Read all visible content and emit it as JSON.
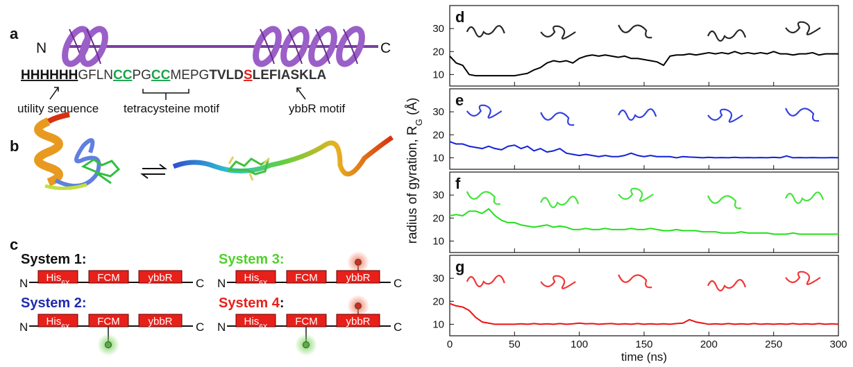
{
  "panel_a": {
    "label": "a",
    "n_term": "N",
    "c_term": "C",
    "sequence": [
      {
        "text": "HHHHHH",
        "bold": true,
        "underline": true,
        "color": "#111111"
      },
      {
        "text": "GFLN",
        "color": "#333333"
      },
      {
        "text": "CC",
        "bold": true,
        "underline": true,
        "color": "#1aa34a"
      },
      {
        "text": "PG",
        "color": "#333333"
      },
      {
        "text": "CC",
        "bold": true,
        "underline": true,
        "color": "#1aa34a"
      },
      {
        "text": "MEPG",
        "color": "#333333"
      },
      {
        "text": "TVLD",
        "bold": true,
        "color": "#333333"
      },
      {
        "text": "S",
        "bold": true,
        "underline": true,
        "color": "#e0201b"
      },
      {
        "text": "LEFIASKLA",
        "bold": true,
        "color": "#333333"
      }
    ],
    "annotations": [
      "utility sequence",
      "tetracysteine motif",
      "ybbR motif"
    ]
  },
  "panel_b": {
    "label": "b"
  },
  "panel_c": {
    "label": "c",
    "n_term": "N",
    "c_term": "C",
    "boxes": [
      "His",
      "FCM",
      "ybbR"
    ],
    "his_subscript": "6X",
    "box_color": "#e8201a",
    "systems": [
      {
        "name": "System 1:",
        "color": "#111111"
      },
      {
        "name": "System 2:",
        "color": "#1f2bb0"
      },
      {
        "name": "System 3:",
        "color": "#4fd12a"
      },
      {
        "name": "System 4",
        "suffix": ":",
        "color": "#e8201a"
      }
    ]
  },
  "figure": {
    "ylabel": "radius of gyration, R",
    "ylabel_sub": "G",
    "ylabel_end": " (Å)"
  },
  "chart_data": [
    {
      "type": "line",
      "label": "d",
      "color": "#000000",
      "xlim": [
        0,
        300
      ],
      "xticks": [
        0,
        50,
        100,
        150,
        200,
        250,
        300
      ],
      "ylim": [
        5,
        40
      ],
      "yticks": [
        10,
        20,
        30
      ],
      "x": [
        0,
        5,
        10,
        15,
        20,
        25,
        30,
        35,
        40,
        45,
        50,
        55,
        60,
        65,
        70,
        75,
        80,
        85,
        90,
        95,
        100,
        105,
        110,
        115,
        120,
        125,
        130,
        135,
        140,
        145,
        150,
        155,
        160,
        165,
        170,
        175,
        180,
        185,
        190,
        195,
        200,
        205,
        210,
        215,
        220,
        225,
        230,
        235,
        240,
        245,
        250,
        255,
        260,
        265,
        270,
        275,
        280,
        285,
        290,
        295,
        300
      ],
      "values": [
        18,
        15,
        14,
        10,
        9.5,
        9.5,
        9.5,
        9.5,
        9.5,
        9.5,
        9.5,
        10,
        10.5,
        12,
        13,
        15,
        16,
        15.5,
        16,
        15,
        17,
        18,
        18.5,
        18,
        18.5,
        18,
        17.5,
        18,
        17,
        17,
        16.5,
        16,
        15.5,
        14,
        18,
        18.5,
        18.5,
        19,
        18.5,
        19,
        19.5,
        19,
        19.5,
        19,
        20,
        19,
        19.5,
        19,
        19.5,
        19,
        20,
        19,
        19,
        18.5,
        19,
        19,
        19.5,
        18.5,
        19,
        19,
        19
      ]
    },
    {
      "type": "line",
      "label": "e",
      "color": "#1020d8",
      "xlim": [
        0,
        300
      ],
      "xticks": [
        0,
        50,
        100,
        150,
        200,
        250,
        300
      ],
      "ylim": [
        5,
        40
      ],
      "yticks": [
        10,
        20,
        30
      ],
      "x": [
        0,
        5,
        10,
        15,
        20,
        25,
        30,
        35,
        40,
        45,
        50,
        55,
        60,
        65,
        70,
        75,
        80,
        85,
        90,
        95,
        100,
        105,
        110,
        115,
        120,
        125,
        130,
        135,
        140,
        145,
        150,
        155,
        160,
        165,
        170,
        175,
        180,
        185,
        190,
        195,
        200,
        205,
        210,
        215,
        220,
        225,
        230,
        235,
        240,
        245,
        250,
        255,
        260,
        265,
        270,
        275,
        280,
        285,
        290,
        295,
        300
      ],
      "values": [
        17,
        16,
        16,
        15,
        14.5,
        14,
        15,
        14,
        13.5,
        15,
        15.5,
        14,
        15,
        13,
        14,
        12.5,
        13,
        14,
        12,
        11.5,
        11,
        11.5,
        11,
        10.5,
        11,
        10.5,
        10.5,
        11,
        12,
        11,
        10.5,
        11,
        10.5,
        10.5,
        10.5,
        10,
        10.5,
        10.3,
        10.2,
        10,
        10.2,
        10,
        10.1,
        10,
        10.2,
        10,
        10.1,
        10,
        10.1,
        10,
        10.2,
        10,
        10.8,
        10,
        10.1,
        10,
        10.1,
        10,
        10,
        10.1,
        10
      ]
    },
    {
      "type": "line",
      "label": "f",
      "color": "#22e01a",
      "xlim": [
        0,
        300
      ],
      "xticks": [
        0,
        50,
        100,
        150,
        200,
        250,
        300
      ],
      "ylim": [
        5,
        40
      ],
      "yticks": [
        10,
        20,
        30
      ],
      "x": [
        0,
        5,
        10,
        15,
        20,
        25,
        30,
        35,
        40,
        45,
        50,
        55,
        60,
        65,
        70,
        75,
        80,
        85,
        90,
        95,
        100,
        105,
        110,
        115,
        120,
        125,
        130,
        135,
        140,
        145,
        150,
        155,
        160,
        165,
        170,
        175,
        180,
        185,
        190,
        195,
        200,
        205,
        210,
        215,
        220,
        225,
        230,
        235,
        240,
        245,
        250,
        255,
        260,
        265,
        270,
        275,
        280,
        285,
        290,
        295,
        300
      ],
      "values": [
        21,
        21.5,
        21,
        23,
        23,
        22,
        24,
        21,
        19,
        18,
        18,
        17,
        16.5,
        16,
        16.5,
        17,
        16,
        16.5,
        16,
        15,
        15,
        15.5,
        15,
        15,
        15.5,
        15,
        15,
        15,
        15.5,
        15,
        15,
        15.5,
        15,
        14.5,
        14.5,
        15,
        14.5,
        14.5,
        14.5,
        14,
        14,
        14,
        13.5,
        13.5,
        13.5,
        14,
        13.5,
        13.5,
        13.5,
        13.5,
        13,
        13,
        13,
        13.5,
        13,
        13,
        13,
        13,
        13,
        13,
        13
      ]
    },
    {
      "type": "line",
      "label": "g",
      "color": "#ee1010",
      "xlim": [
        0,
        300
      ],
      "xticks": [
        0,
        50,
        100,
        150,
        200,
        250,
        300
      ],
      "ylim": [
        5,
        40
      ],
      "yticks": [
        10,
        20,
        30
      ],
      "xlabel": "time (ns)",
      "x": [
        0,
        5,
        10,
        15,
        20,
        25,
        30,
        35,
        40,
        45,
        50,
        55,
        60,
        65,
        70,
        75,
        80,
        85,
        90,
        95,
        100,
        105,
        110,
        115,
        120,
        125,
        130,
        135,
        140,
        145,
        150,
        155,
        160,
        165,
        170,
        175,
        180,
        185,
        190,
        195,
        200,
        205,
        210,
        215,
        220,
        225,
        230,
        235,
        240,
        245,
        250,
        255,
        260,
        265,
        270,
        275,
        280,
        285,
        290,
        295,
        300
      ],
      "values": [
        19,
        18,
        17.5,
        16,
        13,
        11,
        10.5,
        10,
        10,
        10,
        10,
        10.2,
        10,
        10.3,
        10,
        10.2,
        10,
        10.3,
        10,
        10.2,
        10.5,
        10.2,
        10.3,
        10,
        10.2,
        10.3,
        10,
        10.2,
        10,
        10.3,
        10,
        10.2,
        10,
        10.2,
        10,
        10.3,
        10.5,
        12,
        11,
        10.5,
        10,
        10.2,
        10,
        10.3,
        10,
        10.2,
        10,
        10.3,
        10,
        10.2,
        10,
        10.2,
        10,
        10.3,
        10,
        10.2,
        10,
        10.3,
        10,
        10.2,
        10
      ]
    }
  ]
}
